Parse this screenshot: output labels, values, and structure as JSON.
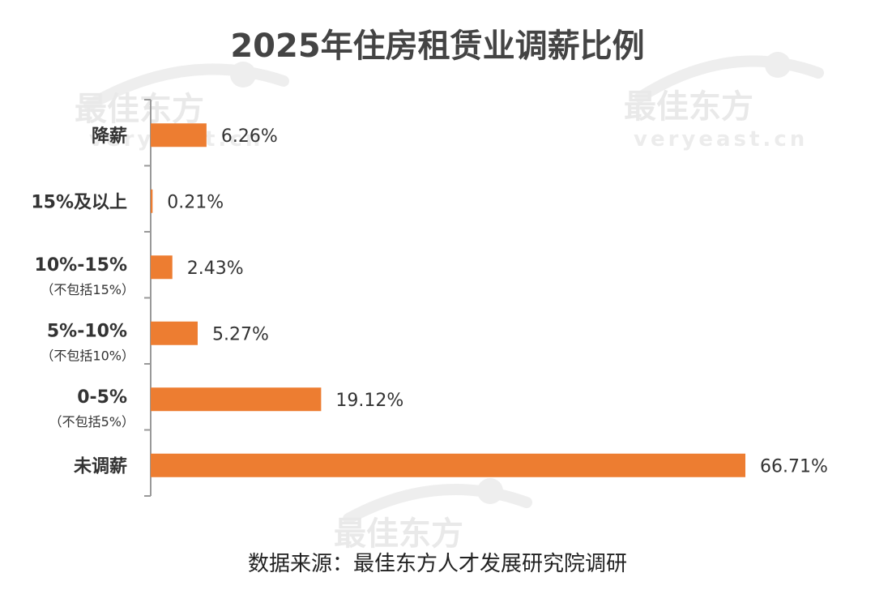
{
  "chart_data": {
    "type": "bar",
    "orientation": "horizontal",
    "title": "2025年住房租赁业调薪比例",
    "categories": [
      {
        "label": "降薪",
        "sublabel": ""
      },
      {
        "label": "15%及以上",
        "sublabel": ""
      },
      {
        "label": "10%-15%",
        "sublabel": "（不包括15%）"
      },
      {
        "label": "5%-10%",
        "sublabel": "（不包括10%）"
      },
      {
        "label": "0-5%",
        "sublabel": "（不包括5%）"
      },
      {
        "label": "未调薪",
        "sublabel": ""
      }
    ],
    "values": [
      6.26,
      0.21,
      2.43,
      5.27,
      19.12,
      66.71
    ],
    "value_labels": [
      "6.26%",
      "0.21%",
      "2.43%",
      "5.27%",
      "19.12%",
      "66.71%"
    ],
    "xlim": [
      0,
      66.71
    ],
    "grid": false,
    "bar_color": "#ed7d31"
  },
  "watermark": {
    "brand": "最佳东方",
    "domain": "veryeast.cn"
  },
  "footer": {
    "source": "数据来源：最佳东方人才发展研究院调研"
  }
}
